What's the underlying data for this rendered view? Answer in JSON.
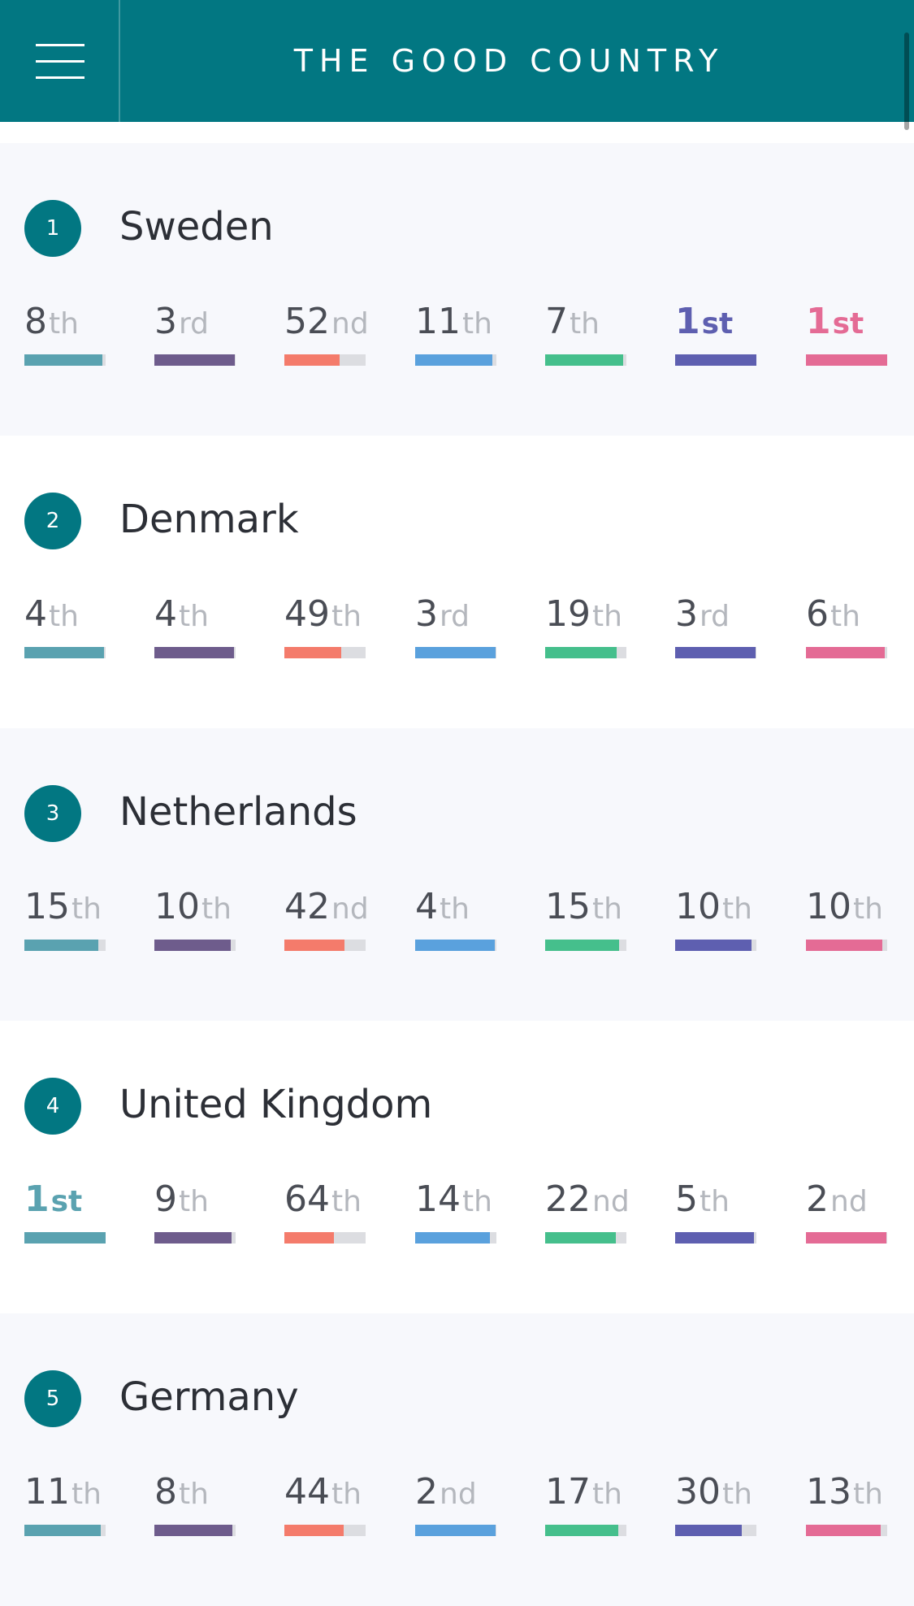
{
  "header": {
    "title": "THE GOOD COUNTRY"
  },
  "icons": {
    "menu": "hamburger-menu-icon"
  },
  "palette": [
    "#5aa2b0",
    "#6e5c8c",
    "#f47b6b",
    "#5aa1dd",
    "#45bf8c",
    "#5e5fb0",
    "#e46b95"
  ],
  "countries": [
    {
      "rank": "1",
      "name": "Sweden",
      "metrics": [
        {
          "num": "8",
          "suf": "th",
          "fill": 0.96
        },
        {
          "num": "3",
          "suf": "rd",
          "fill": 0.99
        },
        {
          "num": "52",
          "suf": "nd",
          "fill": 0.68
        },
        {
          "num": "11",
          "suf": "th",
          "fill": 0.95
        },
        {
          "num": "7",
          "suf": "th",
          "fill": 0.96
        },
        {
          "num": "1",
          "suf": "st",
          "fill": 1.0
        },
        {
          "num": "1",
          "suf": "st",
          "fill": 1.0
        }
      ]
    },
    {
      "rank": "2",
      "name": "Denmark",
      "metrics": [
        {
          "num": "4",
          "suf": "th",
          "fill": 0.98
        },
        {
          "num": "4",
          "suf": "th",
          "fill": 0.98
        },
        {
          "num": "49",
          "suf": "th",
          "fill": 0.7
        },
        {
          "num": "3",
          "suf": "rd",
          "fill": 0.99
        },
        {
          "num": "19",
          "suf": "th",
          "fill": 0.88
        },
        {
          "num": "3",
          "suf": "rd",
          "fill": 0.99
        },
        {
          "num": "6",
          "suf": "th",
          "fill": 0.97
        }
      ]
    },
    {
      "rank": "3",
      "name": "Netherlands",
      "metrics": [
        {
          "num": "15",
          "suf": "th",
          "fill": 0.91
        },
        {
          "num": "10",
          "suf": "th",
          "fill": 0.94
        },
        {
          "num": "42",
          "suf": "nd",
          "fill": 0.74
        },
        {
          "num": "4",
          "suf": "th",
          "fill": 0.98
        },
        {
          "num": "15",
          "suf": "th",
          "fill": 0.91
        },
        {
          "num": "10",
          "suf": "th",
          "fill": 0.94
        },
        {
          "num": "10",
          "suf": "th",
          "fill": 0.94
        }
      ]
    },
    {
      "rank": "4",
      "name": "United Kingdom",
      "metrics": [
        {
          "num": "1",
          "suf": "st",
          "fill": 1.0
        },
        {
          "num": "9",
          "suf": "th",
          "fill": 0.95
        },
        {
          "num": "64",
          "suf": "th",
          "fill": 0.61
        },
        {
          "num": "14",
          "suf": "th",
          "fill": 0.92
        },
        {
          "num": "22",
          "suf": "nd",
          "fill": 0.87
        },
        {
          "num": "5",
          "suf": "th",
          "fill": 0.97
        },
        {
          "num": "2",
          "suf": "nd",
          "fill": 0.99
        }
      ]
    },
    {
      "rank": "5",
      "name": "Germany",
      "metrics": [
        {
          "num": "11",
          "suf": "th",
          "fill": 0.94
        },
        {
          "num": "8",
          "suf": "th",
          "fill": 0.96
        },
        {
          "num": "44",
          "suf": "th",
          "fill": 0.73
        },
        {
          "num": "2",
          "suf": "nd",
          "fill": 0.99
        },
        {
          "num": "17",
          "suf": "th",
          "fill": 0.9
        },
        {
          "num": "30",
          "suf": "th",
          "fill": 0.82
        },
        {
          "num": "13",
          "suf": "th",
          "fill": 0.92
        }
      ]
    }
  ]
}
